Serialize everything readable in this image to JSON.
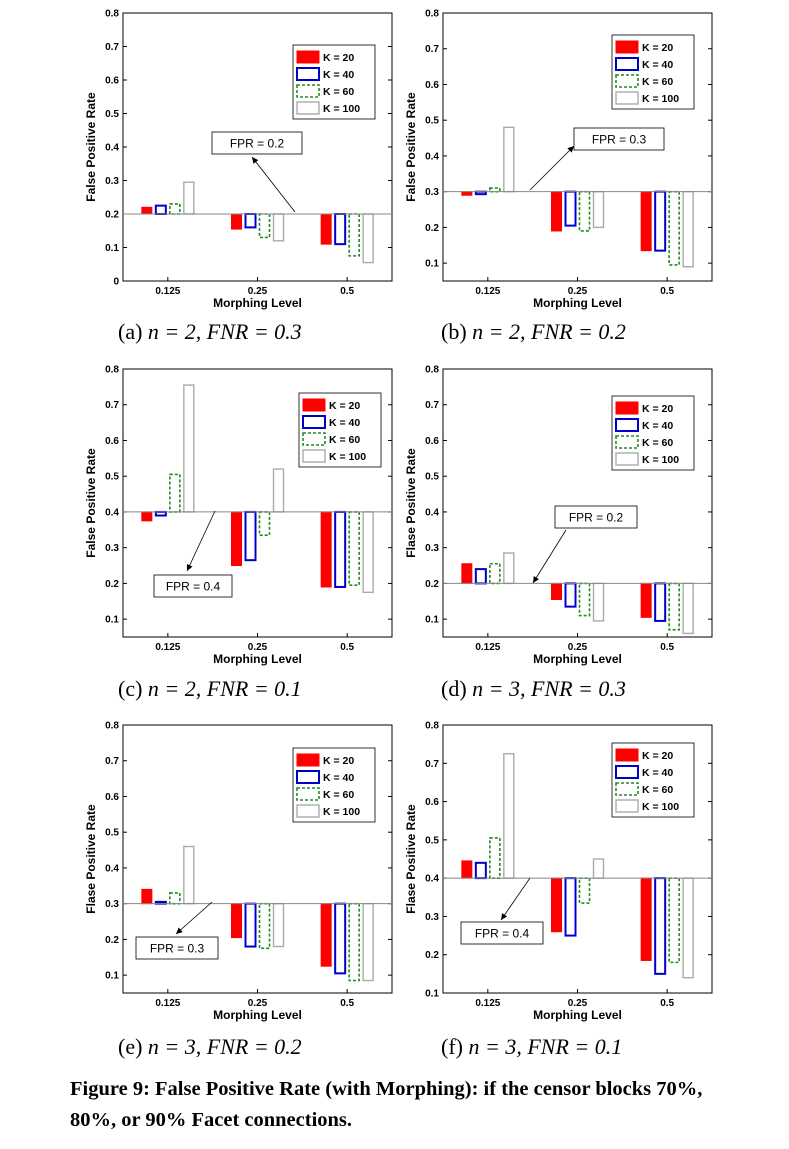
{
  "figure_caption": "Figure 9: False Positive Rate (with Morphing): if the censor blocks 70%, 80%, or 90% Facet connections.",
  "panel_captions": [
    {
      "tag": "(a)",
      "math": "n = 2, FNR = 0.3"
    },
    {
      "tag": "(b)",
      "math": "n = 2, FNR = 0.2"
    },
    {
      "tag": "(c)",
      "math": "n = 2, FNR = 0.1"
    },
    {
      "tag": "(d)",
      "math": "n = 3, FNR = 0.3"
    },
    {
      "tag": "(e)",
      "math": "n = 3, FNR = 0.2"
    },
    {
      "tag": "(f)",
      "math": "n = 3, FNR = 0.1"
    }
  ],
  "series_colors": {
    "K = 20": "#ff0000",
    "K = 40": "#0000cc",
    "K = 60": "#228b22",
    "K = 100": "#aaaaaa"
  },
  "chart_data": [
    {
      "type": "bar",
      "xlabel": "Morphing Level",
      "ylabel": "False Positive Rate",
      "categories": [
        "0.125",
        "0.25",
        "0.5"
      ],
      "ylim": [
        0,
        0.8
      ],
      "yticks": [
        "0",
        "0.1",
        "0.2",
        "0.3",
        "0.4",
        "0.5",
        "0.6",
        "0.7",
        "0.8"
      ],
      "baseline": 0.2,
      "annotation": "FPR = 0.2",
      "legend": "top-right",
      "series": [
        {
          "name": "K = 20",
          "values": [
            0.22,
            0.155,
            0.11
          ]
        },
        {
          "name": "K = 40",
          "values": [
            0.225,
            0.16,
            0.11
          ]
        },
        {
          "name": "K = 60",
          "values": [
            0.23,
            0.13,
            0.075
          ]
        },
        {
          "name": "K = 100",
          "values": [
            0.295,
            0.12,
            0.055
          ]
        }
      ]
    },
    {
      "type": "bar",
      "xlabel": "Morphing Level",
      "ylabel": "False Positive Rate",
      "categories": [
        "0.125",
        "0.25",
        "0.5"
      ],
      "ylim": [
        0.05,
        0.8
      ],
      "yticks": [
        "0.1",
        "0.2",
        "0.3",
        "0.4",
        "0.5",
        "0.6",
        "0.7",
        "0.8"
      ],
      "baseline": 0.3,
      "annotation": "FPR = 0.3",
      "legend": "top-right",
      "series": [
        {
          "name": "K = 20",
          "values": [
            0.29,
            0.19,
            0.135
          ]
        },
        {
          "name": "K = 40",
          "values": [
            0.293,
            0.205,
            0.135
          ]
        },
        {
          "name": "K = 60",
          "values": [
            0.31,
            0.19,
            0.095
          ]
        },
        {
          "name": "K = 100",
          "values": [
            0.48,
            0.2,
            0.09
          ]
        }
      ]
    },
    {
      "type": "bar",
      "xlabel": "Morphing Level",
      "ylabel": "False Positive Rate",
      "categories": [
        "0.125",
        "0.25",
        "0.5"
      ],
      "ylim": [
        0.05,
        0.8
      ],
      "yticks": [
        "0.1",
        "0.2",
        "0.3",
        "0.4",
        "0.5",
        "0.6",
        "0.7",
        "0.8"
      ],
      "baseline": 0.4,
      "annotation": "FPR = 0.4",
      "legend": "top-right",
      "series": [
        {
          "name": "K = 20",
          "values": [
            0.375,
            0.25,
            0.19
          ]
        },
        {
          "name": "K = 40",
          "values": [
            0.39,
            0.265,
            0.19
          ]
        },
        {
          "name": "K = 60",
          "values": [
            0.505,
            0.335,
            0.195
          ]
        },
        {
          "name": "K = 100",
          "values": [
            0.755,
            0.52,
            0.175
          ]
        }
      ]
    },
    {
      "type": "bar",
      "xlabel": "Morphing Level",
      "ylabel": "Flase Positive Rate",
      "categories": [
        "0.125",
        "0.25",
        "0.5"
      ],
      "ylim": [
        0.05,
        0.8
      ],
      "yticks": [
        "0.1",
        "0.2",
        "0.3",
        "0.4",
        "0.5",
        "0.6",
        "0.7",
        "0.8"
      ],
      "baseline": 0.2,
      "annotation": "FPR = 0.2",
      "legend": "top-right",
      "series": [
        {
          "name": "K = 20",
          "values": [
            0.255,
            0.155,
            0.105
          ]
        },
        {
          "name": "K = 40",
          "values": [
            0.24,
            0.135,
            0.095
          ]
        },
        {
          "name": "K = 60",
          "values": [
            0.255,
            0.11,
            0.07
          ]
        },
        {
          "name": "K = 100",
          "values": [
            0.285,
            0.095,
            0.06
          ]
        }
      ]
    },
    {
      "type": "bar",
      "xlabel": "Morphing Level",
      "ylabel": "Flase Positive Rate",
      "categories": [
        "0.125",
        "0.25",
        "0.5"
      ],
      "ylim": [
        0.05,
        0.8
      ],
      "yticks": [
        "0.1",
        "0.2",
        "0.3",
        "0.4",
        "0.5",
        "0.6",
        "0.7",
        "0.8"
      ],
      "baseline": 0.3,
      "annotation": "FPR = 0.3",
      "legend": "top-right",
      "series": [
        {
          "name": "K = 20",
          "values": [
            0.34,
            0.205,
            0.125
          ]
        },
        {
          "name": "K = 40",
          "values": [
            0.305,
            0.18,
            0.105
          ]
        },
        {
          "name": "K = 60",
          "values": [
            0.33,
            0.175,
            0.085
          ]
        },
        {
          "name": "K = 100",
          "values": [
            0.46,
            0.18,
            0.085
          ]
        }
      ]
    },
    {
      "type": "bar",
      "xlabel": "Morphing Level",
      "ylabel": "Flase Positive Rate",
      "categories": [
        "0.125",
        "0.25",
        "0.5"
      ],
      "ylim": [
        0.1,
        0.8
      ],
      "yticks": [
        "0.1",
        "0.2",
        "0.3",
        "0.4",
        "0.5",
        "0.6",
        "0.7",
        "0.8"
      ],
      "baseline": 0.4,
      "annotation": "FPR = 0.4",
      "legend": "top-right",
      "series": [
        {
          "name": "K = 20",
          "values": [
            0.445,
            0.26,
            0.185
          ]
        },
        {
          "name": "K = 40",
          "values": [
            0.44,
            0.25,
            0.15
          ]
        },
        {
          "name": "K = 60",
          "values": [
            0.505,
            0.335,
            0.18
          ]
        },
        {
          "name": "K = 100",
          "values": [
            0.725,
            0.45,
            0.14
          ]
        }
      ]
    }
  ]
}
